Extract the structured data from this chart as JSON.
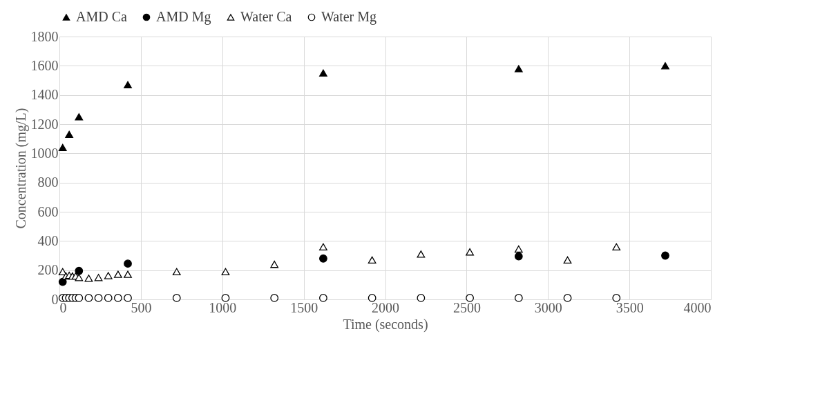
{
  "chart_data": {
    "type": "scatter",
    "xlabel": "Time  (seconds)",
    "ylabel": "Concentration  (mg/L)",
    "xlim": [
      0,
      4000
    ],
    "xticks": [
      0,
      500,
      1000,
      1500,
      2000,
      2500,
      3000,
      3500,
      4000
    ],
    "ylim": [
      0,
      1800
    ],
    "yticks": [
      0,
      200,
      400,
      600,
      800,
      1000,
      1200,
      1400,
      1600,
      1800
    ],
    "grid": true,
    "legend": "top",
    "series": [
      {
        "name": "AMD Ca",
        "color": "#000000",
        "marker": "triangle",
        "x": [
          20,
          60,
          120,
          420,
          1620,
          2820,
          3720
        ],
        "values": [
          1040,
          1130,
          1250,
          1470,
          1550,
          1580,
          1600
        ]
      },
      {
        "name": "AMD Mg",
        "color": "#000000",
        "marker": "circle",
        "x": [
          20,
          120,
          420,
          1620,
          2820,
          3720
        ],
        "values": [
          120,
          195,
          245,
          280,
          295,
          300
        ]
      },
      {
        "name": "Water Ca",
        "color": "#ffffff",
        "marker": "triangle",
        "x": [
          20,
          40,
          60,
          80,
          100,
          120,
          180,
          240,
          300,
          360,
          420,
          720,
          1020,
          1320,
          1620,
          1920,
          2220,
          2520,
          2820,
          3120,
          3420
        ],
        "values": [
          190,
          160,
          165,
          160,
          160,
          150,
          145,
          150,
          163,
          172,
          172,
          190,
          190,
          240,
          360,
          270,
          310,
          325,
          345,
          270,
          360
        ]
      },
      {
        "name": "Water Mg",
        "color": "#ffffff",
        "marker": "circle",
        "x": [
          20,
          40,
          60,
          80,
          100,
          120,
          180,
          240,
          300,
          360,
          420,
          720,
          1020,
          1320,
          1620,
          1920,
          2220,
          2520,
          2820,
          3120,
          3420
        ],
        "values": [
          10,
          10,
          10,
          10,
          10,
          10,
          10,
          10,
          10,
          10,
          10,
          10,
          10,
          10,
          10,
          10,
          10,
          10,
          10,
          10,
          10
        ]
      }
    ]
  }
}
